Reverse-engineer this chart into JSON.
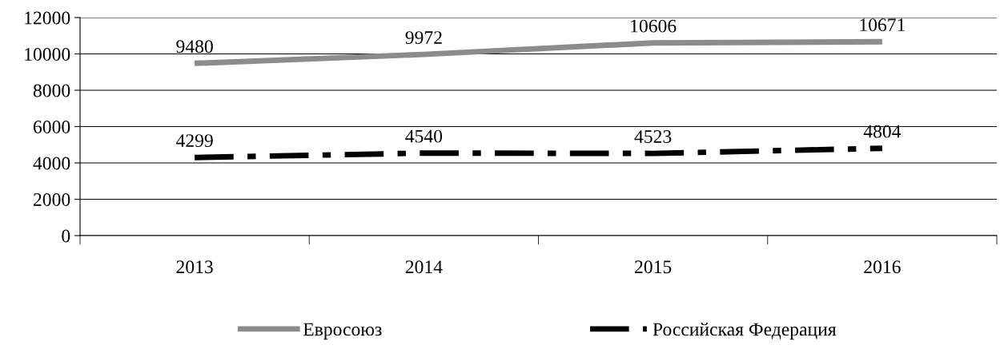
{
  "chart_data": {
    "type": "line",
    "categories": [
      "2013",
      "2014",
      "2015",
      "2016"
    ],
    "series": [
      {
        "name": "Евросоюз",
        "color": "#8c8c8c",
        "line_style": "solid",
        "values": [
          9480,
          9972,
          10606,
          10671
        ]
      },
      {
        "name": "Российская Федерация",
        "color": "#000000",
        "line_style": "dashed",
        "values": [
          4299,
          4540,
          4523,
          4804
        ]
      }
    ],
    "ylim": [
      0,
      12000
    ],
    "yticks": [
      0,
      2000,
      4000,
      6000,
      8000,
      10000,
      12000
    ],
    "grid": "y",
    "legend": "bottom",
    "data_labels": true,
    "marker": "none"
  }
}
